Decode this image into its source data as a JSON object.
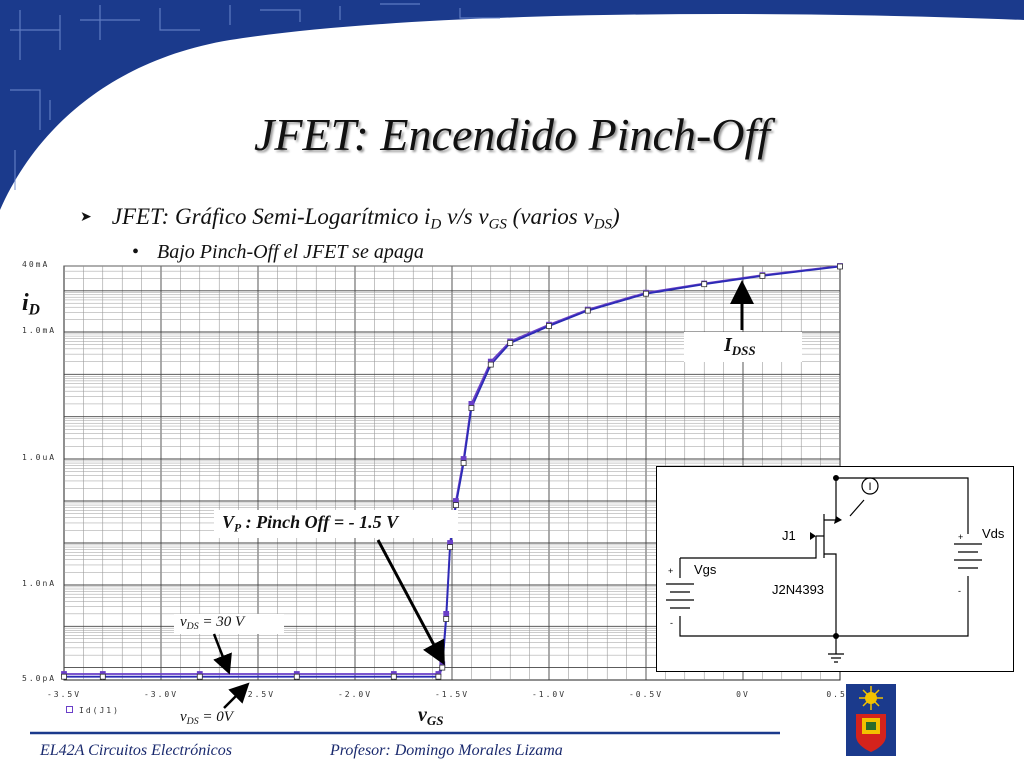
{
  "slide": {
    "title": "JFET: Encendido Pinch-Off",
    "bullet1_prefix": "JFET: Gráfico Semi-Logarítmico i",
    "bullet1_sub1": "D",
    "bullet1_mid": " v/s v",
    "bullet1_sub2": "GS",
    "bullet1_mid2": " (varios v",
    "bullet1_sub3": "DS",
    "bullet1_end": ")",
    "bullet2": "Bajo Pinch-Off el JFET se apaga",
    "footer_left": "EL42A Circuitos Electrónicos",
    "footer_right": "Profesor: Domingo Morales Lizama"
  },
  "annotations": {
    "id_main": "i",
    "id_sub": "D",
    "vgs_main": "v",
    "vgs_sub": "GS",
    "idss_main": "I",
    "idss_sub": "DSS",
    "vp_main": "V",
    "vp_sub": "P",
    "vp_text": " : Pinch Off = - 1.5 V",
    "vds30_main": "v",
    "vds30_sub": "DS",
    "vds30_text": " = 30 V",
    "vds0_main": "v",
    "vds0_sub": "DS",
    "vds0_text": " = 0V"
  },
  "circuit": {
    "j1": "J1",
    "part": "J2N4393",
    "vgs": "Vgs",
    "vds": "Vds",
    "probe": "I",
    "plus": "+",
    "minus": "-"
  },
  "colors": {
    "curve": "#6a3fc8",
    "curve_dark": "#2b2bb5",
    "frame": "#1b3a8c"
  },
  "chart_data": {
    "type": "line",
    "title": "",
    "xlabel": "",
    "ylabel": "",
    "x_ticks": [
      "-3.5V",
      "-3.0V",
      "-2.5V",
      "-2.0V",
      "-1.5V",
      "-1.0V",
      "-0.5V",
      "0V",
      "0.5V"
    ],
    "y_ticks": [
      "40mA",
      "1.0mA",
      "1.0uA",
      "1.0nA",
      "5.0pA"
    ],
    "xlim": [
      -3.5,
      0.5
    ],
    "ylim": [
      5e-12,
      0.04
    ],
    "yscale": "log",
    "grid": true,
    "legend": "Id(J1)",
    "series": [
      {
        "name": "Id(J1)",
        "x": [
          -3.5,
          -3.3,
          -2.8,
          -2.3,
          -1.8,
          -1.57,
          -1.55,
          -1.53,
          -1.51,
          -1.48,
          -1.44,
          -1.4,
          -1.3,
          -1.2,
          -1.0,
          -0.8,
          -0.5,
          -0.2,
          0.1,
          0.5
        ],
        "y": [
          7e-12,
          7e-12,
          7e-12,
          7e-12,
          7e-12,
          7e-12,
          1.2e-11,
          2e-10,
          1e-08,
          1e-07,
          1e-06,
          2e-05,
          0.0002,
          0.0006,
          0.0015,
          0.0035,
          0.009,
          0.015,
          0.024,
          0.04
        ]
      },
      {
        "name": "Id(J1)",
        "x": [
          -3.5,
          -3.3,
          -2.8,
          -2.3,
          -1.8,
          -1.57,
          -1.55,
          -1.53,
          -1.51,
          -1.48,
          -1.44,
          -1.4,
          -1.3,
          -1.2,
          -1.0,
          -0.8,
          -0.5,
          -0.2,
          0.1,
          0.5
        ],
        "y": [
          6e-12,
          6e-12,
          6e-12,
          6e-12,
          6e-12,
          6e-12,
          1e-11,
          1.5e-10,
          8e-09,
          8e-08,
          8e-07,
          1.6e-05,
          0.00017,
          0.00055,
          0.0014,
          0.0033,
          0.0085,
          0.0145,
          0.023,
          0.039
        ]
      }
    ]
  }
}
